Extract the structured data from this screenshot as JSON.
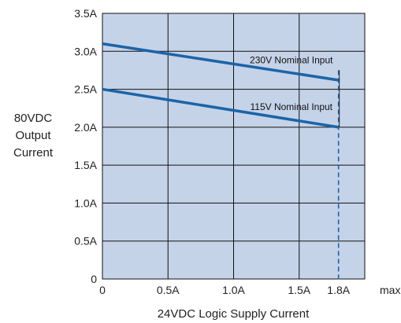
{
  "chart_data": {
    "type": "line",
    "title": "",
    "xlabel": "24VDC Logic Supply Current",
    "ylabel_lines": [
      "80VDC",
      "Output",
      "Current"
    ],
    "xlim": [
      0,
      2.0
    ],
    "ylim": [
      0,
      3.5
    ],
    "x_ticks": [
      {
        "value": 0,
        "label": "0"
      },
      {
        "value": 0.5,
        "label": "0.5A"
      },
      {
        "value": 1.0,
        "label": "1.0A"
      },
      {
        "value": 1.5,
        "label": "1.5A"
      },
      {
        "value": 1.8,
        "label": "1.8A"
      }
    ],
    "x_tick_suffix": "max.",
    "y_ticks": [
      {
        "value": 0,
        "label": "0"
      },
      {
        "value": 0.5,
        "label": "0.5A"
      },
      {
        "value": 1.0,
        "label": "1.0A"
      },
      {
        "value": 1.5,
        "label": "1.5A"
      },
      {
        "value": 2.0,
        "label": "2.0A"
      },
      {
        "value": 2.5,
        "label": "2.5A"
      },
      {
        "value": 3.0,
        "label": "3.0A"
      },
      {
        "value": 3.5,
        "label": "3.5A"
      }
    ],
    "series": [
      {
        "name": "230V Nominal Input",
        "x": [
          0,
          1.8
        ],
        "y": [
          3.1,
          2.62
        ]
      },
      {
        "name": "115V Nominal Input",
        "x": [
          0,
          1.8
        ],
        "y": [
          2.5,
          2.0
        ]
      }
    ],
    "max_marker_x": 1.8,
    "grid": true,
    "colors": {
      "plot_bg": "#c5d3e8",
      "grid": "#111111",
      "line": "#1b64a8",
      "marker": "#1b64a8"
    }
  }
}
